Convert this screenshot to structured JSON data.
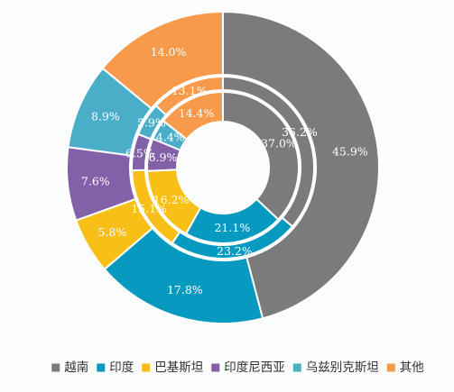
{
  "chart_data": {
    "type": "pie",
    "subtype": "multi-ring donut",
    "categories": [
      "越南",
      "印度",
      "巴基斯坦",
      "印度尼西亚",
      "乌兹别克斯坦",
      "其他"
    ],
    "colors": [
      "#7b7b7b",
      "#069ac1",
      "#f8bf16",
      "#8361a9",
      "#4aaec9",
      "#f89a4b"
    ],
    "series": [
      {
        "values": [
          45.9,
          17.8,
          5.8,
          7.6,
          8.9,
          14.0
        ],
        "labels": [
          "45.9%",
          "17.8%",
          "5.8%",
          "7.6%",
          "8.9%",
          "14.0%"
        ]
      },
      {
        "values": [
          36.2,
          23.2,
          15.1,
          6.5,
          5.9,
          13.1
        ],
        "labels": [
          "36.2%",
          "23.2%",
          "15.1%",
          "6.5%",
          "5.9%",
          "13.1%"
        ]
      },
      {
        "values": [
          37.0,
          21.1,
          16.2,
          6.9,
          4.4,
          14.4
        ],
        "labels": [
          "37.0%",
          "21.1%",
          "16.2%",
          "6.9%",
          "4.4%",
          "14.4%"
        ]
      }
    ],
    "legend": {
      "position": "bottom",
      "items": [
        "越南",
        "印度",
        "巴基斯坦",
        "印度尼西亚",
        "乌兹别克斯坦",
        "其他"
      ]
    }
  }
}
